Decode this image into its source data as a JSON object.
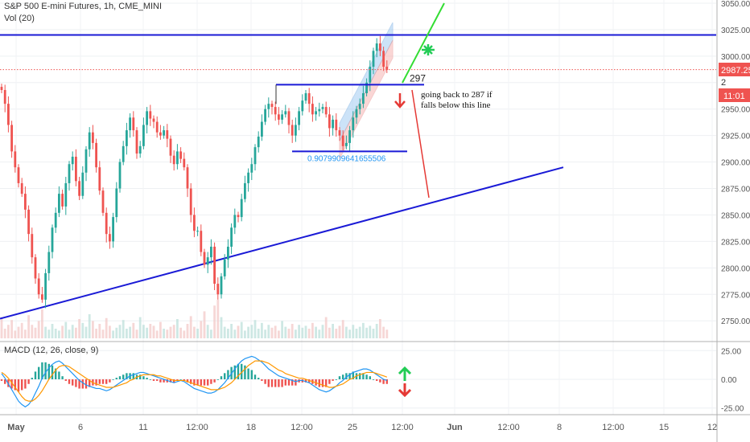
{
  "header": {
    "symbol_line": "S&P 500 E-mini Futures, 1h, CME_MINI",
    "volume_label": "Vol (20)",
    "macd_label": "MACD (12, 26, close, 9)"
  },
  "colors": {
    "up": "#26a69a",
    "down": "#ef5350",
    "resistance_line": "#1a1ad6",
    "trend_line": "#1a1ad6",
    "green_line": "#33dd33",
    "red_arrow": "#e53935",
    "green_arrow": "#22cc55",
    "price_line": "#ef5350",
    "channel_fill": "#90c2f0",
    "macd_line": "#2196f3",
    "signal_line": "#ff9800"
  },
  "chart_data": [
    {
      "type": "candlestick",
      "title": "S&P 500 E-mini Futures, 1h, CME_MINI",
      "y_ticks": [
        "3050.00",
        "3025.00",
        "3000.00",
        "2975.00",
        "2950.00",
        "2925.00",
        "2900.00",
        "2875.00",
        "2850.00",
        "2825.00",
        "2800.00",
        "2775.00",
        "2750.00"
      ],
      "ylim": [
        2738,
        3050
      ],
      "x_ticks": [
        "May",
        "6",
        "11",
        "12:00",
        "18",
        "12:00",
        "25",
        "12:00",
        "Jun",
        "12:00",
        "8",
        "12:00",
        "15",
        "12"
      ],
      "price_badge": "2987.25",
      "time_badge": "11:01",
      "partial_badge": "2",
      "close_price": 2987.25,
      "series": [
        {
          "name": "price",
          "values": [
            2968,
            2955,
            2935,
            2910,
            2895,
            2880,
            2870,
            2855,
            2832,
            2810,
            2790,
            2775,
            2770,
            2795,
            2815,
            2838,
            2852,
            2870,
            2858,
            2880,
            2898,
            2905,
            2882,
            2868,
            2890,
            2912,
            2928,
            2918,
            2895,
            2873,
            2852,
            2832,
            2825,
            2848,
            2875,
            2900,
            2915,
            2930,
            2942,
            2930,
            2908,
            2915,
            2935,
            2948,
            2941,
            2938,
            2928,
            2925,
            2930,
            2922,
            2906,
            2898,
            2910,
            2903,
            2895,
            2875,
            2850,
            2835,
            2835,
            2815,
            2803,
            2810,
            2820,
            2785,
            2775,
            2792,
            2808,
            2820,
            2838,
            2850,
            2848,
            2865,
            2880,
            2890,
            2898,
            2914,
            2924,
            2938,
            2950,
            2955,
            2952,
            2945,
            2940,
            2945,
            2948,
            2935,
            2925,
            2935,
            2948,
            2958,
            2965,
            2955,
            2945,
            2948,
            2950,
            2952,
            2945,
            2932,
            2940,
            2930,
            2925,
            2915,
            2918,
            2930,
            2942,
            2950,
            2955,
            2965,
            2975,
            2990,
            3005,
            3012,
            3005,
            2990,
            2987
          ]
        },
        {
          "name": "volume",
          "values": [
            22,
            10,
            14,
            19,
            8,
            12,
            16,
            9,
            24,
            14,
            11,
            18,
            30,
            12,
            9,
            15,
            10,
            8,
            13,
            17,
            9,
            14,
            11,
            20,
            16,
            12,
            25,
            18,
            10,
            15,
            9,
            21,
            13,
            8,
            11,
            14,
            19,
            10,
            12,
            16,
            9,
            22,
            14,
            11,
            15,
            13,
            8,
            17,
            10,
            9,
            12,
            14,
            20,
            11,
            8,
            15,
            23,
            12,
            10,
            18,
            28,
            14,
            9,
            34,
            40,
            22,
            12,
            10,
            15,
            9,
            13,
            17,
            8,
            12,
            14,
            19,
            10,
            16,
            9,
            14,
            11,
            13,
            8,
            18,
            12,
            10,
            15,
            9,
            14,
            11,
            13,
            10,
            16,
            12,
            9,
            14,
            22,
            11,
            15,
            10,
            13,
            19,
            12,
            9,
            14,
            10,
            12,
            16,
            11,
            13,
            10,
            15,
            20,
            12,
            9
          ]
        }
      ],
      "annotations": [
        {
          "kind": "horizontal_line",
          "label": "",
          "value": 3020
        },
        {
          "kind": "horizontal_segment",
          "label": "297",
          "value": 2973
        },
        {
          "kind": "horizontal_segment",
          "label": "0.9079909641655506",
          "value": 2910
        },
        {
          "kind": "text",
          "lines": [
            "going back to 287 if",
            "falls below this line"
          ]
        },
        {
          "kind": "trend_line",
          "from": 2752,
          "to": 2895
        },
        {
          "kind": "regression_channel",
          "from": 2920,
          "to": 3015
        }
      ]
    },
    {
      "type": "macd",
      "title": "MACD (12, 26, close, 9)",
      "y_ticks": [
        "25.00",
        "0.00",
        "-25.00"
      ],
      "ylim": [
        -28,
        28
      ],
      "series": [
        {
          "name": "macd",
          "values": [
            5,
            1,
            -4,
            -9,
            -14,
            -19,
            -22,
            -24,
            -22,
            -18,
            -12,
            -6,
            1,
            6,
            10,
            13,
            15,
            16,
            14,
            11,
            8,
            5,
            2,
            -1,
            -3,
            -5,
            -6,
            -7,
            -8,
            -8,
            -9,
            -10,
            -9,
            -7,
            -5,
            -3,
            -1,
            1,
            3,
            4,
            5,
            6,
            6,
            5,
            4,
            3,
            2,
            1,
            0,
            -1,
            -2,
            -3,
            -2,
            -1,
            -2,
            -4,
            -6,
            -8,
            -9,
            -10,
            -11,
            -12,
            -12,
            -11,
            -9,
            -6,
            -3,
            1,
            5,
            9,
            13,
            16,
            18,
            19,
            20,
            19,
            17,
            15,
            12,
            9,
            7,
            5,
            3,
            2,
            1,
            0,
            -1,
            -2,
            -1,
            -1,
            -2,
            -3,
            -5,
            -7,
            -9,
            -10,
            -11,
            -10,
            -8,
            -6,
            -3,
            -1,
            2,
            4,
            6,
            7,
            8,
            9,
            9,
            8,
            6,
            4,
            2,
            0,
            -1
          ]
        },
        {
          "name": "signal",
          "values": [
            6,
            4,
            1,
            -3,
            -7,
            -11,
            -15,
            -18,
            -19,
            -19,
            -17,
            -14,
            -10,
            -5,
            0,
            4,
            8,
            11,
            12,
            12,
            11,
            9,
            7,
            5,
            3,
            1,
            -1,
            -3,
            -4,
            -5,
            -6,
            -7,
            -7,
            -7,
            -6,
            -5,
            -4,
            -3,
            -1,
            0,
            2,
            3,
            4,
            4,
            4,
            4,
            3,
            3,
            2,
            1,
            0,
            -1,
            -1,
            -1,
            -1,
            -2,
            -3,
            -4,
            -5,
            -6,
            -7,
            -8,
            -9,
            -9,
            -9,
            -8,
            -7,
            -5,
            -3,
            0,
            3,
            6,
            9,
            12,
            14,
            16,
            16,
            16,
            15,
            14,
            12,
            10,
            8,
            7,
            5,
            4,
            3,
            2,
            1,
            1,
            0,
            -1,
            -2,
            -3,
            -4,
            -5,
            -6,
            -7,
            -7,
            -6,
            -5,
            -4,
            -2,
            0,
            1,
            3,
            4,
            5,
            6,
            6,
            6,
            5,
            4,
            3,
            2
          ]
        }
      ]
    }
  ]
}
